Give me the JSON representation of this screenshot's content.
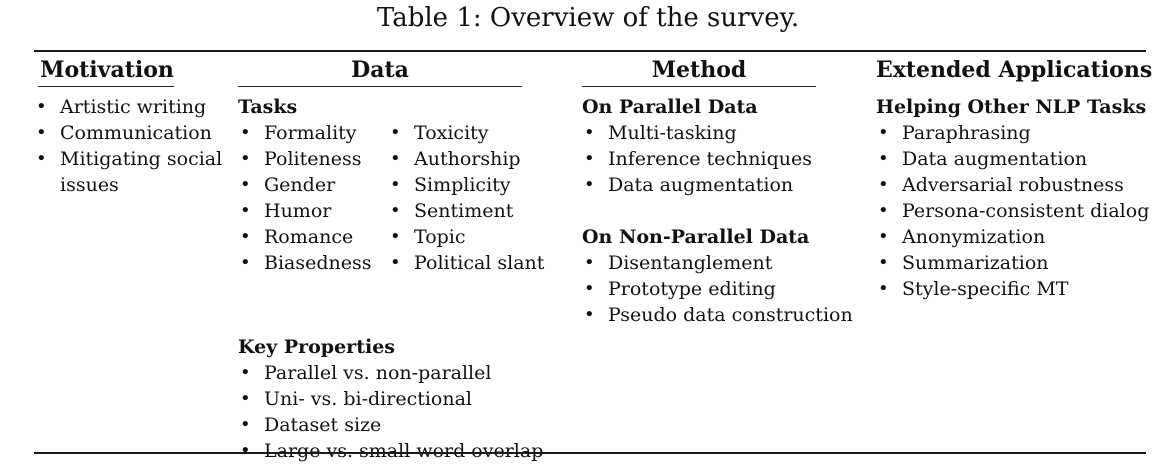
{
  "caption": "Table 1: Overview of the survey.",
  "columns": {
    "motivation": {
      "header": "Motivation",
      "items": [
        "Artistic writing",
        "Communication",
        "Mitigating social issues"
      ]
    },
    "data": {
      "header": "Data",
      "tasks_title": "Tasks",
      "tasks_left": [
        "Formality",
        "Politeness",
        "Gender",
        "Humor",
        "Romance",
        "Biasedness"
      ],
      "tasks_right": [
        "Toxicity",
        "Authorship",
        "Simplicity",
        "Sentiment",
        "Topic",
        "Political slant"
      ],
      "key_title": "Key Properties",
      "key_items": [
        "Parallel vs. non-parallel",
        "Uni- vs. bi-directional",
        "Dataset size",
        "Large vs. small word overlap"
      ]
    },
    "method": {
      "header": "Method",
      "parallel_title": "On Parallel Data",
      "parallel_items": [
        "Multi-tasking",
        "Inference techniques",
        "Data augmentation"
      ],
      "nonparallel_title": "On Non-Parallel Data",
      "nonparallel_items": [
        "Disentanglement",
        "Prototype editing",
        "Pseudo data construction"
      ]
    },
    "applications": {
      "header": "Extended Applications",
      "title": "Helping Other NLP Tasks",
      "items": [
        "Paraphrasing",
        "Data augmentation",
        "Adversarial robustness",
        "Persona-consistent dialog",
        "Anonymization",
        "Summarization",
        "Style-specific MT"
      ]
    }
  },
  "bullet": "•"
}
